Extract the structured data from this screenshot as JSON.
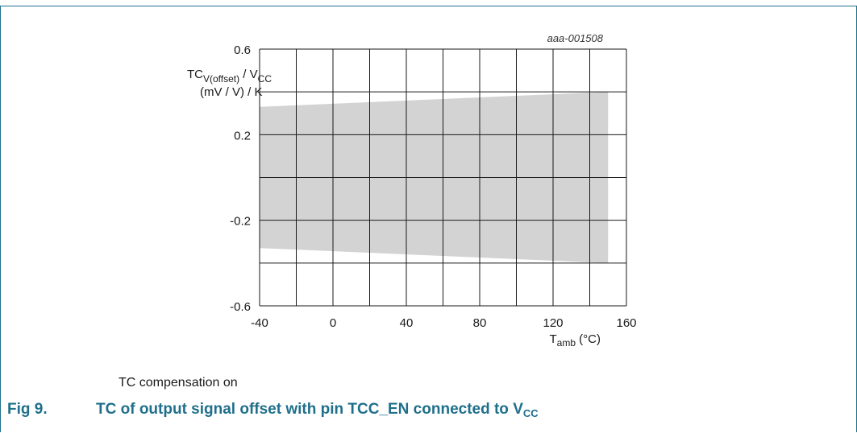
{
  "chart_data": {
    "type": "area",
    "reference_id": "aaa-001508",
    "ylabel": {
      "line1_main": "TC",
      "line1_sub": "V(offset)",
      "line1_mid": " / V",
      "line1_sub2": "CC",
      "line2": "(mV / V) / K"
    },
    "xlabel": {
      "main": "T",
      "sub": "amb",
      "unit": " (°C)"
    },
    "xlim": [
      -40,
      160
    ],
    "ylim": [
      -0.6,
      0.6
    ],
    "x_ticks": [
      "-40",
      "0",
      "40",
      "80",
      "120",
      "160"
    ],
    "y_ticks": [
      "0.6",
      "0.2",
      "-0.2",
      "-0.6"
    ],
    "x_grid": [
      -40,
      -20,
      0,
      20,
      40,
      60,
      80,
      100,
      120,
      140,
      160
    ],
    "y_grid": [
      -0.6,
      -0.4,
      -0.2,
      0,
      0.2,
      0.4,
      0.6
    ],
    "grid": true,
    "band": {
      "x": [
        -40,
        150
      ],
      "upper": [
        0.33,
        0.4
      ],
      "lower": [
        -0.33,
        -0.4
      ],
      "color": "#d3d3d3"
    }
  },
  "note": "TC compensation on",
  "caption": {
    "label": "Fig 9.",
    "text": "TC of output signal offset with pin TCC_EN connected to V",
    "sub": "CC"
  },
  "colors": {
    "accent": "#1f6f8b",
    "band": "#d3d3d3",
    "grid": "#1a1a1a"
  }
}
